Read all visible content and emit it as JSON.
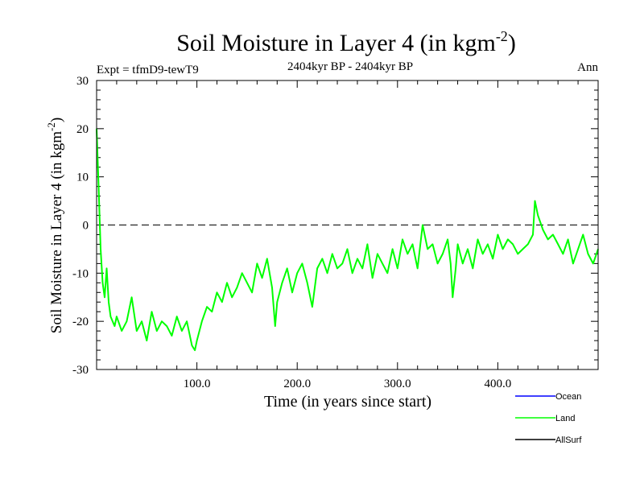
{
  "chart_data": {
    "type": "line",
    "title_main": "Soil Moisture in Layer 4 (in kgm",
    "title_sup": "-2",
    "title_close": ")",
    "subtitle": "2404kyr BP - 2404kyr BP",
    "expt_label": "Expt = tfmD9-tewT9",
    "season_label": "Ann",
    "xlabel": "Time (in years since start)",
    "ylabel_main": "Soil Moisture in Layer 4 (in kgm",
    "ylabel_sup": "-2",
    "ylabel_close": ")",
    "xlim": [
      0,
      500
    ],
    "ylim": [
      -30,
      30
    ],
    "x_ticks": [
      100,
      200,
      300,
      400
    ],
    "x_tick_labels": [
      "100.0",
      "200.0",
      "300.0",
      "400.0"
    ],
    "y_ticks": [
      -30,
      -20,
      -10,
      0,
      10,
      20,
      30
    ],
    "y_tick_labels": [
      "-30",
      "-20",
      "-10",
      "0",
      "10",
      "20",
      "30"
    ],
    "reference_line": 0,
    "legend": [
      {
        "name": "Ocean",
        "color": "#0000ff"
      },
      {
        "name": "Land",
        "color": "#00ff00"
      },
      {
        "name": "AllSurf",
        "color": "#000000"
      }
    ],
    "series": [
      {
        "name": "Land",
        "color": "#00ff00",
        "x": [
          0,
          2,
          4,
          6,
          8,
          10,
          12,
          14,
          16,
          18,
          20,
          25,
          30,
          35,
          40,
          45,
          50,
          55,
          60,
          65,
          70,
          75,
          80,
          85,
          90,
          95,
          98,
          100,
          105,
          110,
          115,
          120,
          125,
          130,
          135,
          140,
          145,
          150,
          155,
          160,
          165,
          170,
          175,
          178,
          180,
          185,
          190,
          195,
          200,
          205,
          210,
          215,
          220,
          225,
          230,
          235,
          240,
          245,
          250,
          255,
          260,
          265,
          270,
          275,
          280,
          285,
          290,
          295,
          300,
          305,
          310,
          315,
          320,
          325,
          328,
          330,
          335,
          340,
          345,
          350,
          353,
          355,
          358,
          360,
          365,
          370,
          375,
          380,
          385,
          390,
          395,
          400,
          405,
          410,
          415,
          420,
          425,
          430,
          435,
          437,
          440,
          445,
          450,
          455,
          460,
          465,
          470,
          475,
          480,
          485,
          490,
          495,
          500
        ],
        "values": [
          20,
          8,
          -5,
          -12,
          -15,
          -9,
          -16,
          -19,
          -20,
          -21,
          -19,
          -22,
          -20,
          -15,
          -22,
          -20,
          -24,
          -18,
          -22,
          -20,
          -21,
          -23,
          -19,
          -22,
          -20,
          -25,
          -26,
          -24,
          -20,
          -17,
          -18,
          -14,
          -16,
          -12,
          -15,
          -13,
          -10,
          -12,
          -14,
          -8,
          -11,
          -7,
          -13,
          -21,
          -16,
          -12,
          -9,
          -14,
          -10,
          -8,
          -12,
          -17,
          -9,
          -7,
          -10,
          -6,
          -9,
          -8,
          -5,
          -10,
          -7,
          -9,
          -4,
          -11,
          -6,
          -8,
          -10,
          -5,
          -9,
          -3,
          -6,
          -4,
          -9,
          0,
          -3,
          -5,
          -4,
          -8,
          -6,
          -3,
          -8,
          -15,
          -9,
          -4,
          -8,
          -5,
          -9,
          -3,
          -6,
          -4,
          -7,
          -2,
          -5,
          -3,
          -4,
          -6,
          -5,
          -4,
          -2,
          5,
          2,
          -1,
          -3,
          -2,
          -4,
          -6,
          -3,
          -8,
          -5,
          -2,
          -6,
          -8,
          -5
        ]
      }
    ]
  }
}
